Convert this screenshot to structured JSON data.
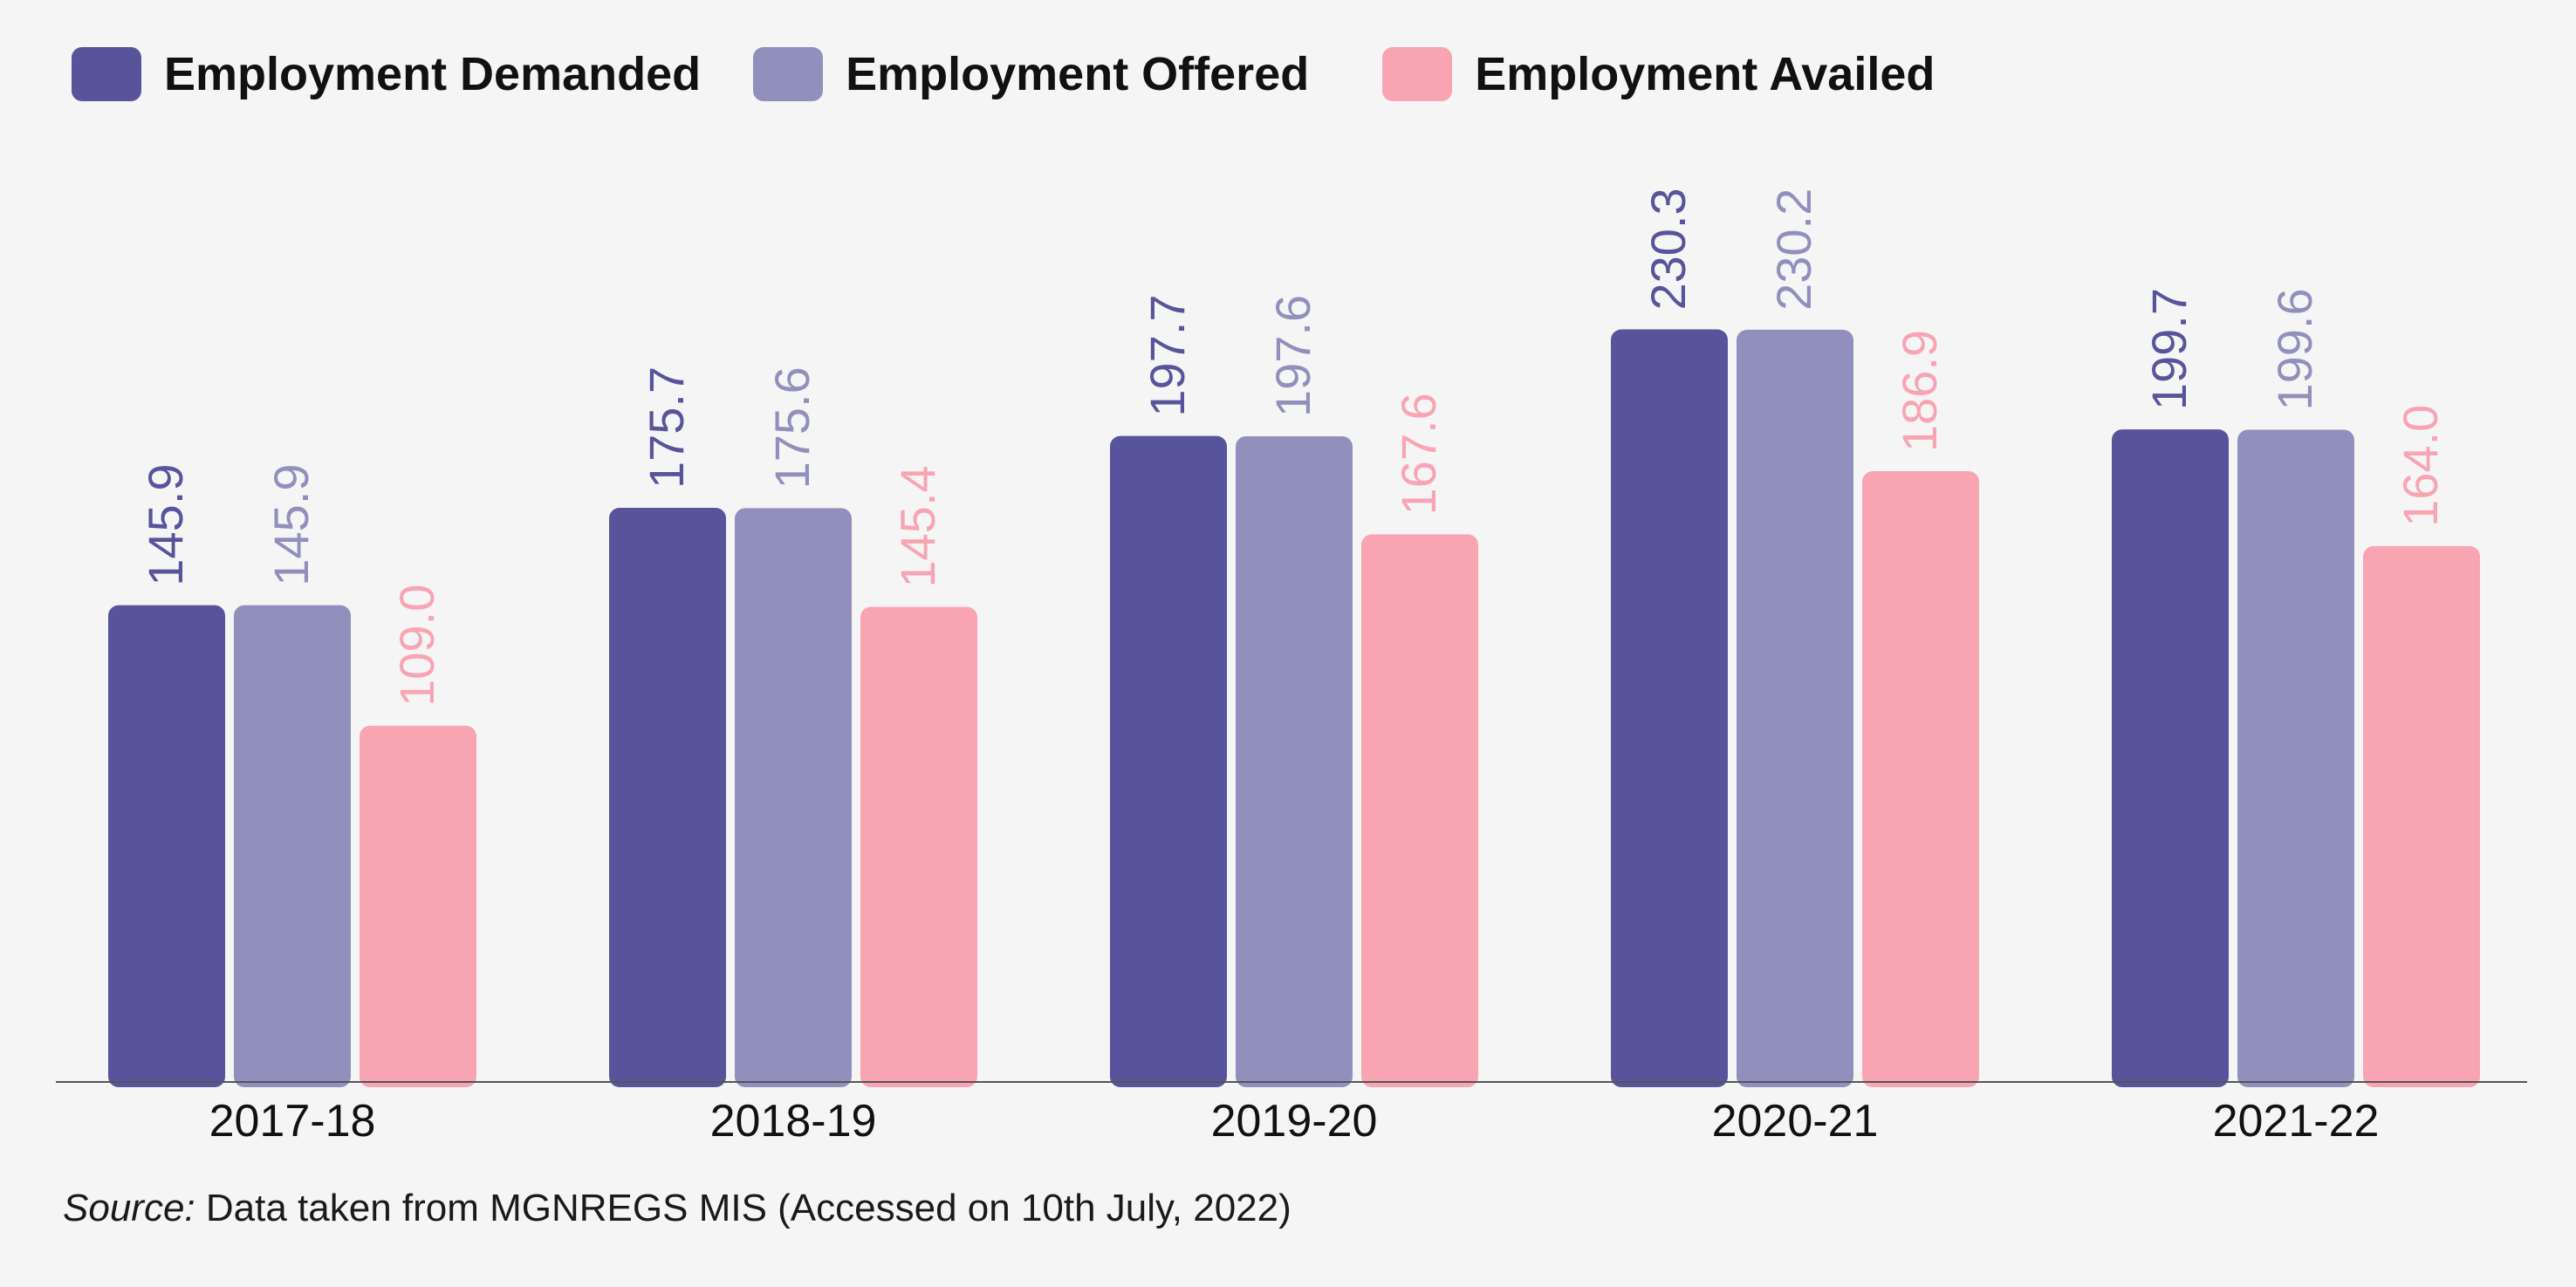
{
  "chart_data": {
    "type": "bar",
    "categories": [
      "2017-18",
      "2018-19",
      "2019-20",
      "2020-21",
      "2021-22"
    ],
    "series": [
      {
        "name": "Employment Demanded",
        "color": "#58549b",
        "values": [
          145.9,
          175.7,
          197.7,
          230.3,
          199.7
        ],
        "labels": [
          "145.9",
          "175.7",
          "197.7",
          "230.3",
          "199.7"
        ]
      },
      {
        "name": "Employment Offered",
        "color": "#9190bd",
        "values": [
          145.9,
          175.6,
          197.6,
          230.2,
          199.6
        ],
        "labels": [
          "145.9",
          "175.6",
          "197.6",
          "230.2",
          "199.6"
        ]
      },
      {
        "name": "Employment Availed",
        "color": "#f9a4b2",
        "values": [
          109.0,
          145.4,
          167.6,
          186.9,
          164.0
        ],
        "labels": [
          "109.0",
          "145.4",
          "167.6",
          "186.9",
          "164.0"
        ]
      }
    ],
    "ylim": [
      0,
      260
    ],
    "grid": false,
    "legend_position": "top-left",
    "data_labels": "rotated above bars"
  },
  "source": {
    "label": "Source:",
    "text": " Data taken from MGNREGS MIS (Accessed on 10th July, 2022)"
  }
}
